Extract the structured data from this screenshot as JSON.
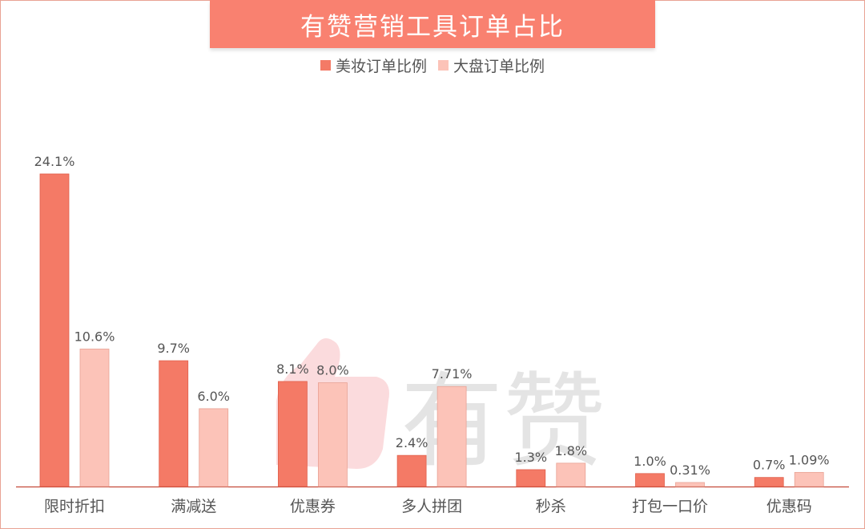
{
  "title": "有赞营销工具订单占比",
  "watermark": "有赞",
  "colors": {
    "series1": "#f47a66",
    "series1_stroke": "#e0604c",
    "series2": "#fcc3b8",
    "series2_stroke": "#e8a294",
    "axis": "#c44a3a",
    "label": "#555555",
    "value_label": "#555555",
    "title_bg": "#f98170"
  },
  "chart_data": {
    "type": "bar",
    "title": "有赞营销工具订单占比",
    "categories": [
      "限时折扣",
      "满减送",
      "优惠券",
      "多人拼团",
      "秒杀",
      "打包一口价",
      "优惠码"
    ],
    "series": [
      {
        "name": "美妆订单比例",
        "values": [
          24.1,
          9.7,
          8.1,
          2.4,
          1.3,
          1.0,
          0.7
        ],
        "labels": [
          "24.1%",
          "9.7%",
          "8.1%",
          "2.4%",
          "1.3%",
          "1.0%",
          "0.7%"
        ]
      },
      {
        "name": "大盘订单比例",
        "values": [
          10.6,
          6.0,
          8.0,
          7.71,
          1.8,
          0.31,
          1.09
        ],
        "labels": [
          "10.6%",
          "6.0%",
          "8.0%",
          "7.71%",
          "1.8%",
          "0.31%",
          "1.09%"
        ]
      }
    ],
    "ylim": [
      0,
      24.1
    ],
    "grid": false,
    "legend_position": "top-center",
    "xlabel": "",
    "ylabel": ""
  }
}
